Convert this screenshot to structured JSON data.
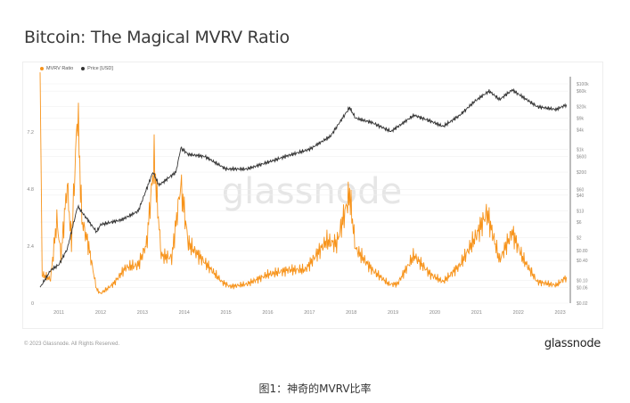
{
  "title": "Bitcoin: The Magical MVRV Ratio",
  "footer": {
    "copyright": "© 2023 Glassnode. All Rights Reserved.",
    "logo": "glassnode"
  },
  "watermark": "glassnode",
  "caption": "图1：神奇的MVRV比率",
  "colors": {
    "mvrv": "#f7931a",
    "price": "#333333",
    "axis": "#555555",
    "grid": "#f0f0f0"
  },
  "chart_data": {
    "type": "line",
    "title": "Bitcoin: The Magical MVRV Ratio",
    "legend": {
      "placement": "top-left",
      "entries": [
        "MVRV Ratio",
        "Price [USD]"
      ]
    },
    "x_ticks": [
      "2011",
      "2012",
      "2013",
      "2014",
      "2015",
      "2016",
      "2017",
      "2018",
      "2019",
      "2020",
      "2021",
      "2022",
      "2023"
    ],
    "xlim": [
      2010.55,
      2023.2
    ],
    "y_left": {
      "label": "MVRV Ratio",
      "ticks": [
        "0",
        "2.4",
        "4.8",
        "7.2"
      ],
      "tick_values": [
        0,
        2.4,
        4.8,
        7.2
      ],
      "ylim": [
        0,
        9.45
      ]
    },
    "y_right": {
      "label": "Price [USD]",
      "scale": "log",
      "ticks": [
        "$100k",
        "$60k",
        "$20k",
        "$9k",
        "$4k",
        "$1k",
        "$600",
        "$200",
        "$60",
        "$40",
        "$13",
        "$6",
        "$2",
        "$0.80",
        "$0.40",
        "$0.10",
        "$0.06",
        "$0.02"
      ],
      "tick_values": [
        100000,
        60000,
        20000,
        9000,
        4000,
        1000,
        600,
        200,
        60,
        40,
        13,
        6,
        2,
        0.8,
        0.4,
        0.1,
        0.06,
        0.02
      ],
      "ylim": [
        0.02,
        100000
      ]
    },
    "series": [
      {
        "name": "MVRV Ratio",
        "axis": "left",
        "points": [
          [
            2010.55,
            9.4
          ],
          [
            2010.6,
            1.2
          ],
          [
            2010.8,
            1.0
          ],
          [
            2010.95,
            3.5
          ],
          [
            2011.05,
            2.0
          ],
          [
            2011.2,
            5.0
          ],
          [
            2011.3,
            2.5
          ],
          [
            2011.45,
            8.1
          ],
          [
            2011.55,
            3.5
          ],
          [
            2011.7,
            2.5
          ],
          [
            2011.9,
            0.6
          ],
          [
            2012.0,
            0.4
          ],
          [
            2012.3,
            0.8
          ],
          [
            2012.6,
            1.5
          ],
          [
            2012.9,
            1.6
          ],
          [
            2013.1,
            2.5
          ],
          [
            2013.28,
            6.0
          ],
          [
            2013.45,
            2.0
          ],
          [
            2013.7,
            1.9
          ],
          [
            2013.92,
            5.0
          ],
          [
            2014.1,
            2.5
          ],
          [
            2014.5,
            1.7
          ],
          [
            2014.9,
            0.9
          ],
          [
            2015.1,
            0.7
          ],
          [
            2015.5,
            0.8
          ],
          [
            2016.0,
            1.2
          ],
          [
            2016.5,
            1.4
          ],
          [
            2016.9,
            1.4
          ],
          [
            2017.4,
            2.6
          ],
          [
            2017.65,
            2.5
          ],
          [
            2017.96,
            4.6
          ],
          [
            2018.1,
            2.3
          ],
          [
            2018.5,
            1.4
          ],
          [
            2018.9,
            0.8
          ],
          [
            2019.1,
            0.8
          ],
          [
            2019.5,
            2.0
          ],
          [
            2019.9,
            1.2
          ],
          [
            2020.2,
            0.9
          ],
          [
            2020.6,
            1.6
          ],
          [
            2020.95,
            2.7
          ],
          [
            2021.25,
            3.8
          ],
          [
            2021.55,
            1.8
          ],
          [
            2021.85,
            3.0
          ],
          [
            2022.1,
            1.9
          ],
          [
            2022.45,
            0.9
          ],
          [
            2022.9,
            0.75
          ],
          [
            2023.15,
            1.1
          ]
        ]
      },
      {
        "name": "Price [USD]",
        "axis": "right",
        "points": [
          [
            2010.55,
            0.06
          ],
          [
            2010.8,
            0.2
          ],
          [
            2011.0,
            0.3
          ],
          [
            2011.2,
            0.9
          ],
          [
            2011.45,
            18
          ],
          [
            2011.6,
            10
          ],
          [
            2011.9,
            3
          ],
          [
            2012.0,
            5
          ],
          [
            2012.5,
            7
          ],
          [
            2012.9,
            13
          ],
          [
            2013.25,
            200
          ],
          [
            2013.4,
            80
          ],
          [
            2013.8,
            200
          ],
          [
            2013.92,
            1100
          ],
          [
            2014.1,
            700
          ],
          [
            2014.5,
            600
          ],
          [
            2015.0,
            250
          ],
          [
            2015.5,
            250
          ],
          [
            2016.0,
            400
          ],
          [
            2016.5,
            650
          ],
          [
            2017.0,
            1000
          ],
          [
            2017.5,
            2500
          ],
          [
            2017.96,
            19000
          ],
          [
            2018.1,
            9000
          ],
          [
            2018.5,
            6500
          ],
          [
            2018.95,
            3500
          ],
          [
            2019.5,
            11000
          ],
          [
            2019.9,
            7200
          ],
          [
            2020.2,
            5000
          ],
          [
            2020.6,
            11000
          ],
          [
            2020.95,
            29000
          ],
          [
            2021.3,
            60000
          ],
          [
            2021.55,
            33000
          ],
          [
            2021.85,
            65000
          ],
          [
            2022.1,
            40000
          ],
          [
            2022.45,
            20000
          ],
          [
            2022.9,
            16500
          ],
          [
            2023.15,
            23000
          ]
        ]
      }
    ]
  }
}
